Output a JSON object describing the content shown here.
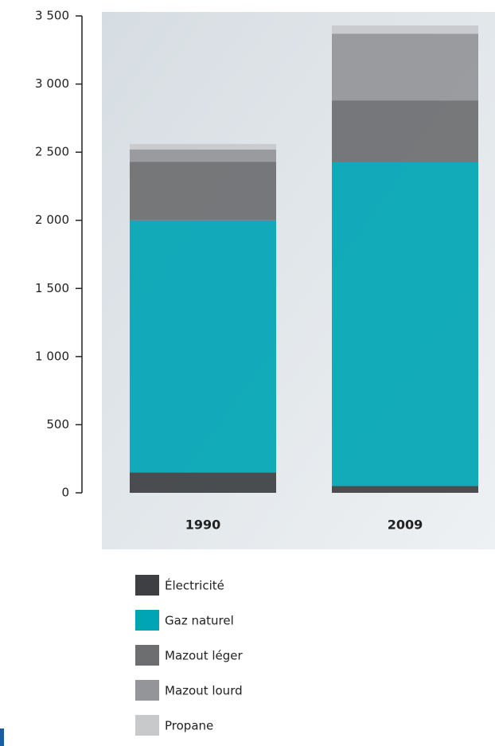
{
  "chart_data": {
    "type": "stacked_bar",
    "categories": [
      "1990",
      "2009"
    ],
    "series": [
      {
        "name": "Électricité",
        "color": "#3d3f42",
        "values": [
          150,
          50
        ]
      },
      {
        "name": "Gaz naturel",
        "color": "#00a5b5",
        "values": [
          1850,
          2375
        ]
      },
      {
        "name": "Mazout léger",
        "color": "#6d6e70",
        "values": [
          430,
          455
        ]
      },
      {
        "name": "Mazout lourd",
        "color": "#949598",
        "values": [
          90,
          490
        ]
      },
      {
        "name": "Propane",
        "color": "#c8c9cb",
        "values": [
          40,
          60
        ]
      }
    ],
    "ylim": [
      0,
      3500
    ],
    "yticks": [
      0,
      500,
      {
        "value": 1000,
        "label": "1 000"
      },
      {
        "value": 1500,
        "label": "1 500"
      },
      {
        "value": 2000,
        "label": "2 000"
      },
      {
        "value": 2500,
        "label": "2 500"
      },
      {
        "value": 3000,
        "label": "3 000"
      },
      {
        "value": 3500,
        "label": "3 500"
      }
    ],
    "legend": "bottom"
  }
}
